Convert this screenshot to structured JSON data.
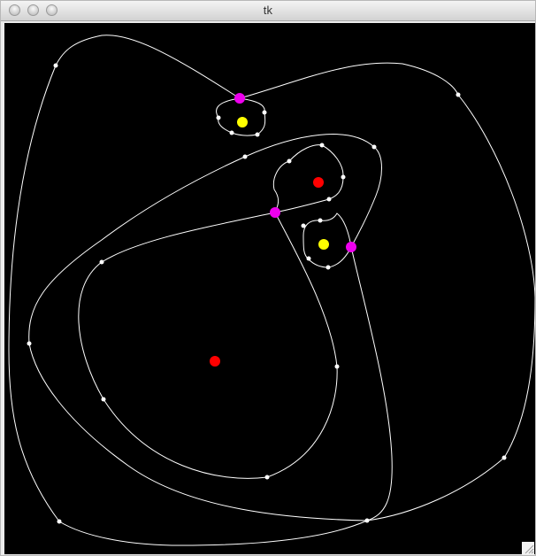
{
  "window": {
    "title": "tk"
  },
  "canvas": {
    "background": "#000000",
    "curve_color": "#ffffff",
    "colors": {
      "red": "#ff0000",
      "yellow": "#ffff00",
      "magenta": "#ee00ee",
      "control_point": "#ffffff"
    }
  },
  "icons": {
    "close": "close-traffic-light-icon",
    "minimize": "minimize-traffic-light-icon",
    "zoom": "zoom-traffic-light-icon",
    "resize": "resize-grip-icon"
  }
}
